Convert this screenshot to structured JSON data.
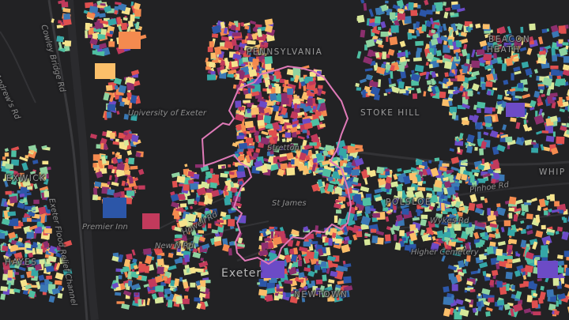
{
  "map": {
    "background_color": "#222224",
    "building_palette": [
      "#2c56a8",
      "#3b78b5",
      "#35a7a7",
      "#4fbfa2",
      "#8fd3a0",
      "#d7e89a",
      "#f6e38c",
      "#fbbf6a",
      "#f48a4f",
      "#e0504f",
      "#c23a5c",
      "#8c2f6e",
      "#6c4bc6"
    ],
    "boundary_color": "#e07ab8",
    "labels": {
      "st_andrews_rd": "St Andrew's Rd",
      "cowley_bridge_rd": "Cowley Bridge Rd",
      "pennsylvania": "PENNSYLVANIA",
      "beacon": "BEACON",
      "heath": "HEATH",
      "university": "University of Exeter",
      "stoke_hill": "STOKE HILL",
      "pinhoe_rd": "Pinhoe Rd",
      "whip": "WHIP",
      "exwick": "EXWICK",
      "polsloe": "POLSLOE",
      "st_james": "St James",
      "wykes_rd": "Wykes Rd",
      "exeter_flood_relief": "Exeter Flood Relief Channel",
      "premier_inn": "Premier Inn",
      "howell_rd": "Howell Rd",
      "new_n_rd": "New N Rd",
      "hayes": "HAYES",
      "higher_cemetery": "Higher Cemetery",
      "exeter": "Exeter",
      "newtown": "NEWTOWN",
      "stretton": "Stretton"
    }
  }
}
